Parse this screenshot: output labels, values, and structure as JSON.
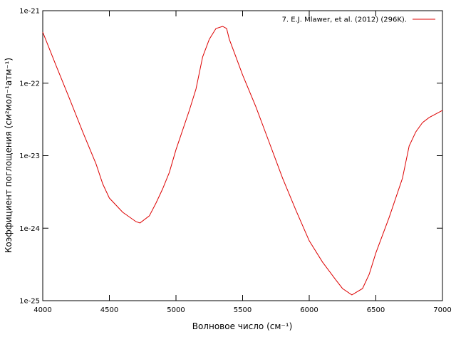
{
  "chart_data": {
    "type": "line",
    "xlabel": "Волновое число (см⁻¹)",
    "ylabel": "Коэффициент поглощения (см²мол⁻¹атм⁻¹)",
    "x": [
      4000,
      4100,
      4200,
      4300,
      4400,
      4450,
      4500,
      4600,
      4700,
      4730,
      4800,
      4850,
      4900,
      4950,
      5000,
      5100,
      5150,
      5200,
      5250,
      5300,
      5350,
      5380,
      5400,
      5450,
      5500,
      5600,
      5700,
      5800,
      5900,
      6000,
      6100,
      6200,
      6250,
      6320,
      6400,
      6450,
      6500,
      6600,
      6700,
      6750,
      6800,
      6850,
      6900,
      7000
    ],
    "series": [
      {
        "name": "7. E.J. Mlawer, et al. (2012) (296K).",
        "color": "#dd0000",
        "values": [
          5.07e-22,
          1.75e-22,
          6.18e-23,
          2.13e-23,
          7.7e-24,
          4.09e-24,
          2.6e-24,
          1.66e-24,
          1.23e-24,
          1.18e-24,
          1.48e-24,
          2.22e-24,
          3.49e-24,
          5.87e-24,
          1.21e-23,
          4.21e-23,
          8.3e-23,
          2.3e-22,
          4.04e-22,
          5.68e-22,
          6.08e-22,
          5.68e-22,
          4.04e-22,
          2.3e-22,
          1.3e-22,
          4.71e-23,
          1.52e-23,
          4.9e-24,
          1.77e-24,
          6.7e-25,
          3.4e-25,
          1.93e-25,
          1.47e-25,
          1.2e-25,
          1.47e-25,
          2.31e-25,
          4.55e-25,
          1.41e-24,
          4.9e-24,
          1.36e-23,
          2.13e-23,
          2.86e-23,
          3.36e-23,
          4.21e-23
        ]
      }
    ],
    "xlim": [
      4000,
      7000
    ],
    "xticks": [
      4000,
      4500,
      5000,
      5500,
      6000,
      6500,
      7000
    ],
    "ylim": [
      1e-25,
      1e-21
    ],
    "ylog": true,
    "yticks": [
      {
        "value": 1e-25,
        "label": "1e-25"
      },
      {
        "value": 1e-24,
        "label": "1e-24"
      },
      {
        "value": 1e-23,
        "label": "1e-23"
      },
      {
        "value": 1e-22,
        "label": "1e-22"
      },
      {
        "value": 1e-21,
        "label": "1e-21"
      }
    ],
    "legend": "top-right"
  }
}
